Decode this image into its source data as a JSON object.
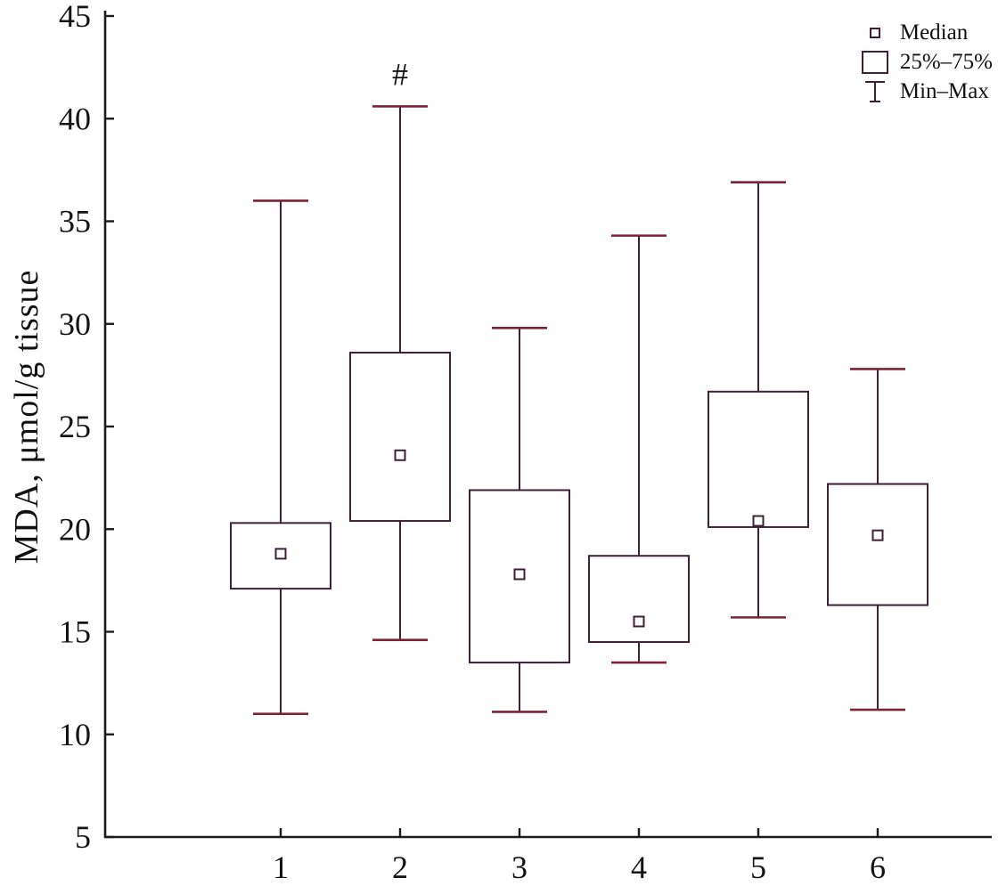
{
  "chart_data": {
    "type": "box",
    "title": "",
    "xlabel": "",
    "ylabel": "MDA, μmol/g tissue",
    "ylim": [
      5,
      45
    ],
    "yticks": [
      45,
      40,
      35,
      30,
      25,
      20,
      15,
      10,
      5
    ],
    "categories": [
      "1",
      "2",
      "3",
      "4",
      "5",
      "6"
    ],
    "series": [
      {
        "group": "1",
        "min": 11.0,
        "q1": 17.1,
        "median": 18.8,
        "q3": 20.3,
        "max": 36.0,
        "annotation": ""
      },
      {
        "group": "2",
        "min": 14.6,
        "q1": 20.4,
        "median": 23.6,
        "q3": 28.6,
        "max": 40.6,
        "annotation": "#"
      },
      {
        "group": "3",
        "min": 11.1,
        "q1": 13.5,
        "median": 17.8,
        "q3": 21.9,
        "max": 29.8,
        "annotation": ""
      },
      {
        "group": "4",
        "min": 13.5,
        "q1": 14.5,
        "median": 15.5,
        "q3": 18.7,
        "max": 34.3,
        "annotation": ""
      },
      {
        "group": "5",
        "min": 15.7,
        "q1": 20.1,
        "median": 20.4,
        "q3": 26.7,
        "max": 36.9,
        "annotation": ""
      },
      {
        "group": "6",
        "min": 11.2,
        "q1": 16.3,
        "median": 19.7,
        "q3": 22.2,
        "max": 27.8,
        "annotation": ""
      }
    ],
    "legend": [
      "Median",
      "25%–75%",
      "Min–Max"
    ],
    "legend_position": "top-right",
    "grid": false,
    "colors": {
      "line": "#3e2137",
      "cap": "#7c2436",
      "axis": "#1c1c1c",
      "marker_fill": "#ffffff",
      "text": "#141414"
    }
  }
}
